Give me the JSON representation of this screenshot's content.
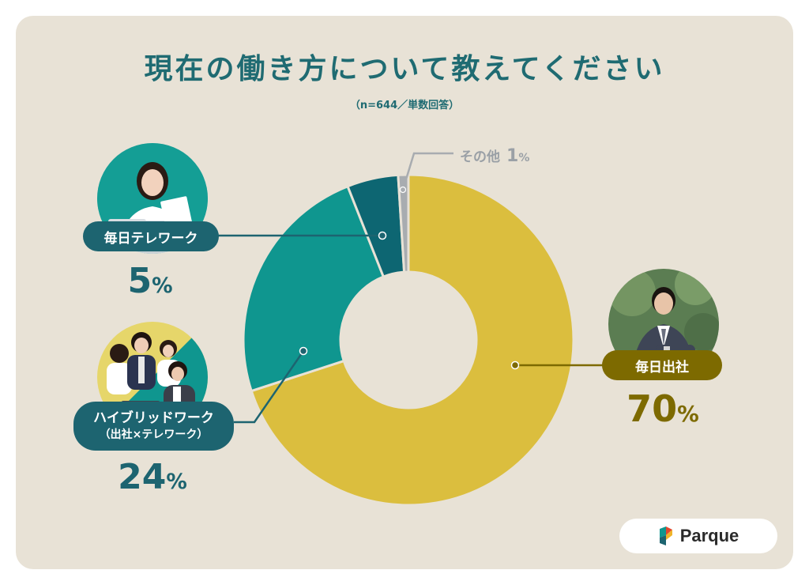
{
  "title": "現在の働き方について教えてください",
  "subtitle": "（n=644／単数回答）",
  "chart_data": {
    "type": "pie",
    "categories": [
      "毎日出社",
      "ハイブリッドワーク（出社×テレワーク）",
      "毎日テレワーク",
      "その他"
    ],
    "values": [
      70,
      24,
      5,
      1
    ],
    "unit": "%",
    "colors": [
      "#dbbe3e",
      "#0f968f",
      "#0d6672",
      "#a8acb0"
    ]
  },
  "labels": {
    "office": {
      "name": "毎日出社",
      "value": "70",
      "unit": "%"
    },
    "hybrid": {
      "name_line1": "ハイブリッドワーク",
      "name_line2": "（出社×テレワーク）",
      "value": "24",
      "unit": "%"
    },
    "remote": {
      "name": "毎日テレワーク",
      "value": "5",
      "unit": "%"
    },
    "other": {
      "name": "その他",
      "value": "1",
      "unit": "%"
    }
  },
  "label_colors": {
    "office_pill": "#7d6a00",
    "teal_pill": "#1d6470",
    "office_text": "#7d6a00",
    "teal_text": "#1d6470"
  },
  "icons": {
    "remote_photo": "woman-at-laptop-icon",
    "hybrid_photo": "meeting-group-icon",
    "office_photo": "businessman-checking-watch-icon",
    "brand_logo": "parque-logo-icon"
  },
  "brand": {
    "name": "Parque"
  }
}
